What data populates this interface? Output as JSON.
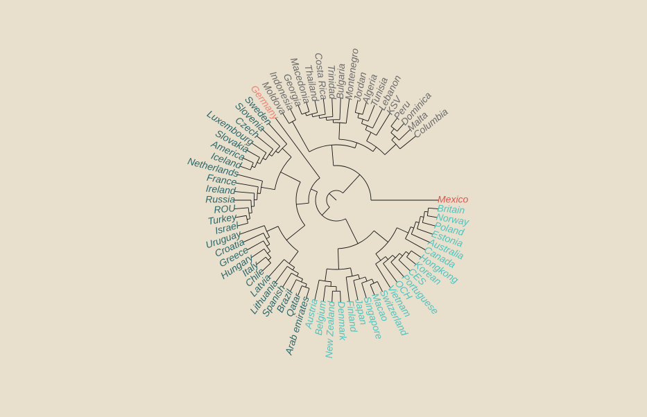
{
  "diagram": {
    "type": "circular-dendrogram",
    "colors": {
      "background": "#e8dfcd",
      "branches": "#141414",
      "dark_teal": "#2b6669",
      "grey": "#6b6b6b",
      "light_teal": "#4fc4bf",
      "highlight_red": "#e0584f",
      "salmon": "#f08272"
    },
    "leaves": [
      {
        "label": "Mexico",
        "color": "#e0584f"
      },
      {
        "label": "Britain",
        "color": "#4fc4bf"
      },
      {
        "label": "Norway",
        "color": "#4fc4bf"
      },
      {
        "label": "Poland",
        "color": "#4fc4bf"
      },
      {
        "label": "Estonia",
        "color": "#4fc4bf"
      },
      {
        "label": "Australia",
        "color": "#4fc4bf"
      },
      {
        "label": "Canada",
        "color": "#4fc4bf"
      },
      {
        "label": "Hongkong",
        "color": "#4fc4bf"
      },
      {
        "label": "Korean",
        "color": "#4fc4bf"
      },
      {
        "label": "CES",
        "color": "#4fc4bf"
      },
      {
        "label": "Portuguese",
        "color": "#4fc4bf"
      },
      {
        "label": "OCH",
        "color": "#4fc4bf"
      },
      {
        "label": "Vietnam",
        "color": "#4fc4bf"
      },
      {
        "label": "Switzerland",
        "color": "#4fc4bf"
      },
      {
        "label": "Macao",
        "color": "#4fc4bf"
      },
      {
        "label": "Singapore",
        "color": "#4fc4bf"
      },
      {
        "label": "Japan",
        "color": "#4fc4bf"
      },
      {
        "label": "Finland",
        "color": "#4fc4bf"
      },
      {
        "label": "Denmark",
        "color": "#4fc4bf"
      },
      {
        "label": "New Zealand",
        "color": "#4fc4bf"
      },
      {
        "label": "Belgium",
        "color": "#4fc4bf"
      },
      {
        "label": "Austria",
        "color": "#4fc4bf"
      },
      {
        "label": "Arab emirates",
        "color": "#2b6669"
      },
      {
        "label": "Qatar",
        "color": "#2b6669"
      },
      {
        "label": "Brazil",
        "color": "#2b6669"
      },
      {
        "label": "Spanish",
        "color": "#2b6669"
      },
      {
        "label": "Lithuania",
        "color": "#2b6669"
      },
      {
        "label": "Latvia",
        "color": "#2b6669"
      },
      {
        "label": "Chile",
        "color": "#2b6669"
      },
      {
        "label": "Italy",
        "color": "#2b6669"
      },
      {
        "label": "Hungary",
        "color": "#2b6669"
      },
      {
        "label": "Greece",
        "color": "#2b6669"
      },
      {
        "label": "Croatia",
        "color": "#2b6669"
      },
      {
        "label": "Uruguay",
        "color": "#2b6669"
      },
      {
        "label": "Israel",
        "color": "#2b6669"
      },
      {
        "label": "Turkey",
        "color": "#2b6669"
      },
      {
        "label": "ROU",
        "color": "#2b6669"
      },
      {
        "label": "Russia",
        "color": "#2b6669"
      },
      {
        "label": "Ireland",
        "color": "#2b6669"
      },
      {
        "label": "France",
        "color": "#2b6669"
      },
      {
        "label": "Netherlands",
        "color": "#2b6669"
      },
      {
        "label": "Iceland",
        "color": "#2b6669"
      },
      {
        "label": "America",
        "color": "#2b6669"
      },
      {
        "label": "Slovakia",
        "color": "#2b6669"
      },
      {
        "label": "Luxembourg",
        "color": "#2b6669"
      },
      {
        "label": "Czech",
        "color": "#2b6669"
      },
      {
        "label": "Slovenia",
        "color": "#2b6669"
      },
      {
        "label": "Sweden",
        "color": "#2b6669"
      },
      {
        "label": "Germany",
        "color": "#f08272"
      },
      {
        "label": "Moldova",
        "color": "#6b6b6b"
      },
      {
        "label": "Indonesia",
        "color": "#6b6b6b"
      },
      {
        "label": "Georgia",
        "color": "#6b6b6b"
      },
      {
        "label": "Macedonia",
        "color": "#6b6b6b"
      },
      {
        "label": "Thailand",
        "color": "#6b6b6b"
      },
      {
        "label": "Costa Rica",
        "color": "#6b6b6b"
      },
      {
        "label": "Trinidad",
        "color": "#6b6b6b"
      },
      {
        "label": "Bulgaria",
        "color": "#6b6b6b"
      },
      {
        "label": "Montenegro",
        "color": "#6b6b6b"
      },
      {
        "label": "Jordan",
        "color": "#6b6b6b"
      },
      {
        "label": "Algeria",
        "color": "#6b6b6b"
      },
      {
        "label": "Tunisia",
        "color": "#6b6b6b"
      },
      {
        "label": "Lebanon",
        "color": "#6b6b6b"
      },
      {
        "label": "KSV",
        "color": "#6b6b6b"
      },
      {
        "label": "Peru",
        "color": "#6b6b6b"
      },
      {
        "label": "Dominica",
        "color": "#6b6b6b"
      },
      {
        "label": "Malta",
        "color": "#6b6b6b"
      },
      {
        "label": "Columbia",
        "color": "#6b6b6b"
      }
    ]
  }
}
